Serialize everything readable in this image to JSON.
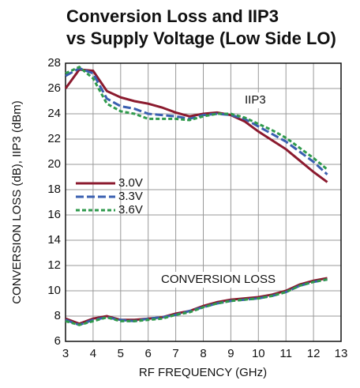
{
  "chart_data": {
    "type": "line",
    "title": [
      "Conversion Loss and IIP3",
      "vs Supply Voltage (Low Side LO)"
    ],
    "xlabel": "RF FREQUENCY (GHz)",
    "ylabel": "CONVERSION LOSS (dB), IIP3 (dBm)",
    "annotations": [
      "IIP3",
      "CONVERSION LOSS"
    ],
    "x": [
      3,
      3.5,
      4,
      4.5,
      5,
      5.5,
      6,
      6.5,
      7,
      7.5,
      8,
      8.5,
      9,
      9.5,
      10,
      10.5,
      11,
      11.5,
      12,
      12.5
    ],
    "series": [
      {
        "name": "3.0V",
        "color": "#8b1a2e",
        "line_style": "solid",
        "iip3": [
          26.0,
          27.5,
          27.4,
          25.8,
          25.3,
          25.0,
          24.8,
          24.5,
          24.1,
          23.8,
          24.0,
          24.1,
          23.9,
          23.4,
          22.6,
          21.9,
          21.2,
          20.3,
          19.4,
          18.6
        ],
        "conversion_loss": [
          7.8,
          7.4,
          7.8,
          8.0,
          7.7,
          7.7,
          7.8,
          7.9,
          8.2,
          8.4,
          8.8,
          9.1,
          9.3,
          9.4,
          9.5,
          9.7,
          10.0,
          10.5,
          10.8,
          11.0
        ]
      },
      {
        "name": "3.3V",
        "color": "#3a5fb0",
        "line_style": "dashed",
        "iip3": [
          27.0,
          27.6,
          27.2,
          25.2,
          24.6,
          24.4,
          24.0,
          23.9,
          23.8,
          23.6,
          23.9,
          24.0,
          23.9,
          23.6,
          23.0,
          22.4,
          21.8,
          21.0,
          20.2,
          19.2
        ],
        "conversion_loss": [
          7.7,
          7.3,
          7.7,
          7.9,
          7.7,
          7.6,
          7.8,
          7.9,
          8.1,
          8.4,
          8.7,
          9.0,
          9.2,
          9.3,
          9.4,
          9.6,
          9.9,
          10.4,
          10.7,
          10.9
        ]
      },
      {
        "name": "3.6V",
        "color": "#2f9a4c",
        "line_style": "dotted",
        "iip3": [
          27.2,
          27.7,
          26.8,
          24.8,
          24.2,
          24.0,
          23.6,
          23.6,
          23.6,
          23.5,
          23.8,
          24.0,
          24.0,
          23.7,
          23.2,
          22.7,
          22.1,
          21.3,
          20.5,
          19.6
        ],
        "conversion_loss": [
          7.6,
          7.3,
          7.6,
          7.9,
          7.6,
          7.6,
          7.7,
          7.8,
          8.1,
          8.3,
          8.7,
          9.0,
          9.2,
          9.3,
          9.4,
          9.6,
          9.9,
          10.4,
          10.7,
          10.9
        ]
      }
    ],
    "xlim": [
      3,
      13
    ],
    "xticks": [
      3,
      4,
      5,
      6,
      7,
      8,
      9,
      10,
      11,
      12,
      13
    ],
    "ylim": [
      6,
      28
    ],
    "yticks": [
      6,
      8,
      10,
      12,
      14,
      16,
      18,
      20,
      22,
      24,
      26,
      28
    ],
    "grid": true
  }
}
